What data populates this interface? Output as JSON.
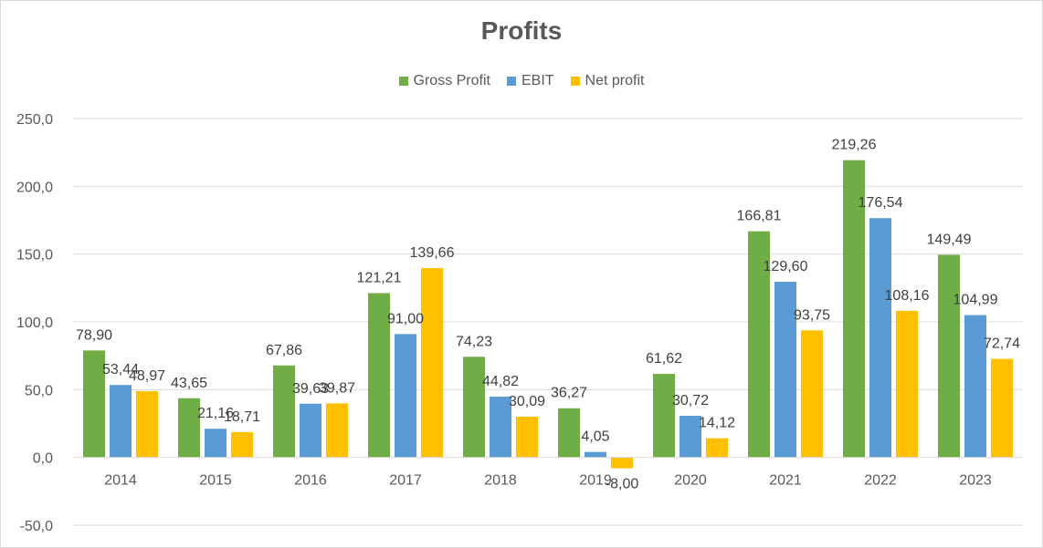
{
  "chart_data": {
    "type": "bar",
    "title": "Profits",
    "categories": [
      "2014",
      "2015",
      "2016",
      "2017",
      "2018",
      "2019",
      "2020",
      "2021",
      "2022",
      "2023"
    ],
    "series": [
      {
        "name": "Gross Profit",
        "color": "#70ad47",
        "values": [
          78.9,
          43.65,
          67.86,
          121.21,
          74.23,
          36.27,
          61.62,
          166.81,
          219.26,
          149.49
        ],
        "labels": [
          "78,90",
          "43,65",
          "67,86",
          "121,21",
          "74,23",
          "36,27",
          "61,62",
          "166,81",
          "219,26",
          "149,49"
        ]
      },
      {
        "name": "EBIT",
        "color": "#5b9bd5",
        "values": [
          53.44,
          21.16,
          39.63,
          91.0,
          44.82,
          4.05,
          30.72,
          129.6,
          176.54,
          104.99
        ],
        "labels": [
          "53,44",
          "21,16",
          "39,63",
          "91,00",
          "44,82",
          "4,05",
          "30,72",
          "129,60",
          "176,54",
          "104,99"
        ]
      },
      {
        "name": "Net profit",
        "color": "#ffc000",
        "values": [
          48.97,
          18.71,
          39.87,
          139.66,
          30.09,
          -8.0,
          14.12,
          93.75,
          108.16,
          72.74
        ],
        "labels": [
          "48,97",
          "18,71",
          "39,87",
          "139,66",
          "30,09",
          "-8,00",
          "14,12",
          "93,75",
          "108,16",
          "72,74"
        ]
      }
    ],
    "ylim": [
      -50,
      250
    ],
    "yticks": [
      250,
      200,
      150,
      100,
      50,
      0,
      -50
    ],
    "ytick_labels": [
      "250,0",
      "200,0",
      "150,0",
      "100,0",
      "50,0",
      "0,0",
      "-50,0"
    ],
    "negative_color": "#ff0000",
    "grid": true,
    "legend_position": "top"
  }
}
